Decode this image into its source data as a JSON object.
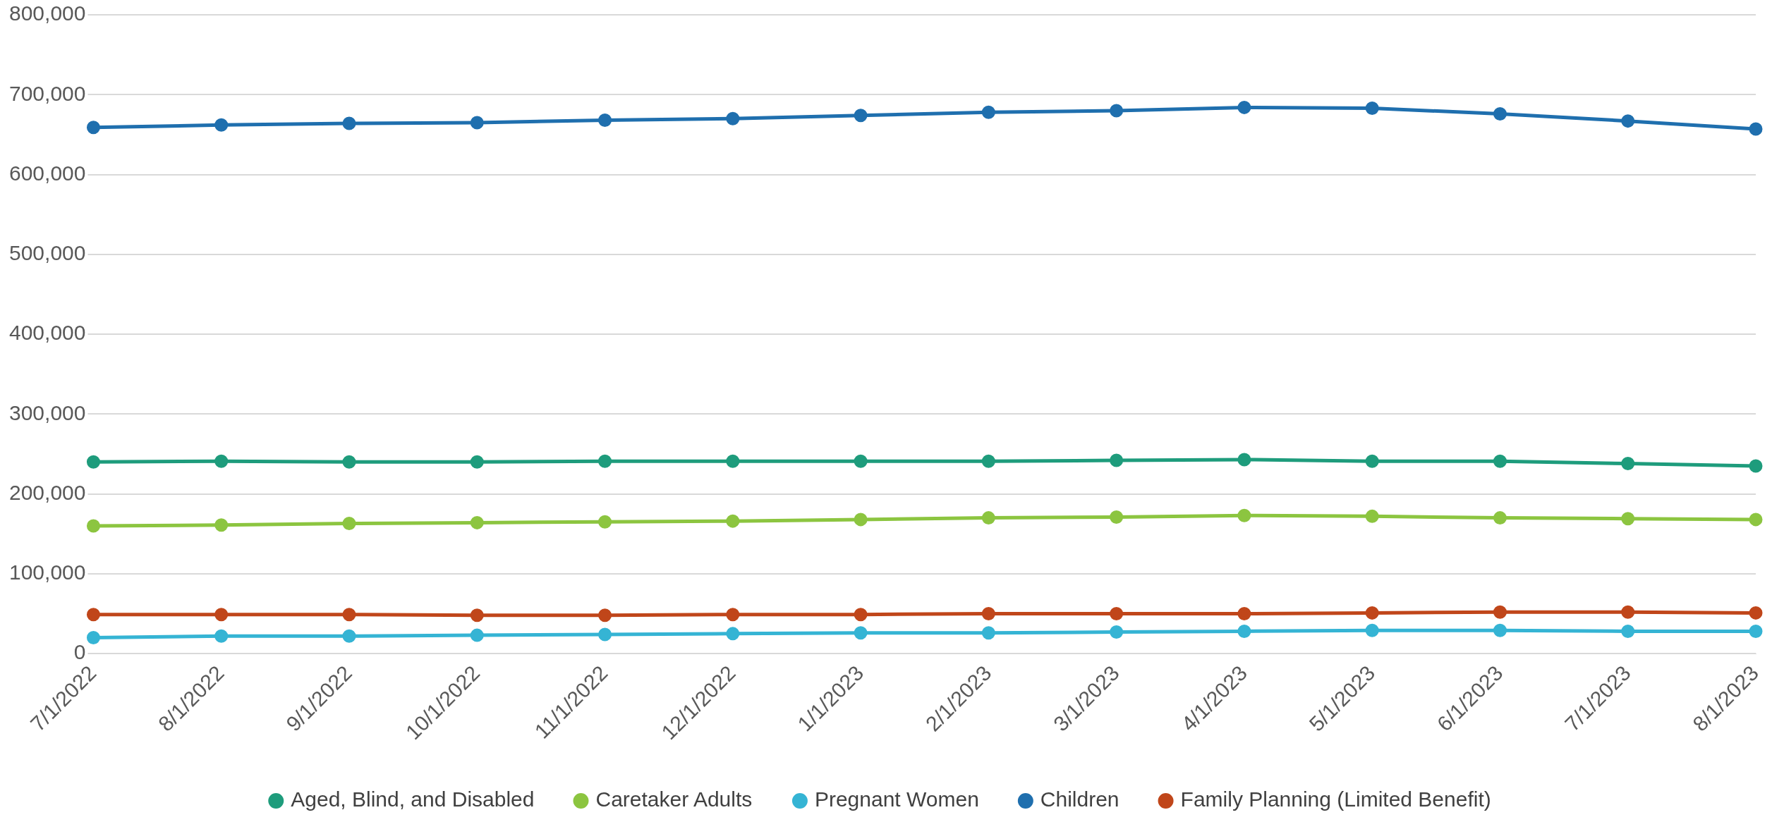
{
  "chart_data": {
    "type": "line",
    "categories": [
      "7/1/2022",
      "8/1/2022",
      "9/1/2022",
      "10/1/2022",
      "11/1/2022",
      "12/1/2022",
      "1/1/2023",
      "2/1/2023",
      "3/1/2023",
      "4/1/2023",
      "5/1/2023",
      "6/1/2023",
      "7/1/2023",
      "8/1/2023"
    ],
    "series": [
      {
        "name": "Aged, Blind, and Disabled",
        "color": "#1e9c7c",
        "values": [
          240000,
          241000,
          240000,
          240000,
          241000,
          241000,
          241000,
          241000,
          242000,
          243000,
          241000,
          241000,
          238000,
          235000
        ]
      },
      {
        "name": "Caretaker Adults",
        "color": "#8cc540",
        "values": [
          160000,
          161000,
          163000,
          164000,
          165000,
          166000,
          168000,
          170000,
          171000,
          173000,
          172000,
          170000,
          169000,
          168000
        ]
      },
      {
        "name": "Pregnant Women",
        "color": "#35b4d4",
        "values": [
          20000,
          22000,
          22000,
          23000,
          24000,
          25000,
          26000,
          26000,
          27000,
          28000,
          29000,
          29000,
          28000,
          28000
        ]
      },
      {
        "name": "Children",
        "color": "#1f6fae",
        "values": [
          659000,
          662000,
          664000,
          665000,
          668000,
          670000,
          674000,
          678000,
          680000,
          684000,
          683000,
          676000,
          667000,
          657000
        ]
      },
      {
        "name": "Family Planning (Limited Benefit)",
        "color": "#c0461a",
        "values": [
          49000,
          49000,
          49000,
          48000,
          48000,
          49000,
          49000,
          50000,
          50000,
          50000,
          51000,
          52000,
          52000,
          51000
        ]
      }
    ],
    "ylim": [
      0,
      800000
    ],
    "yticks": [
      0,
      {
        "value": 100000,
        "label": "100,000"
      },
      {
        "value": 200000,
        "label": "200,000"
      },
      {
        "value": 300000,
        "label": "300,000"
      },
      {
        "value": 400000,
        "label": "400,000"
      },
      {
        "value": 500000,
        "label": "500,000"
      },
      {
        "value": 600000,
        "label": "600,000"
      },
      {
        "value": 700000,
        "label": "700,000"
      },
      {
        "value": 800000,
        "label": "800,000"
      }
    ],
    "grid": "y",
    "legend": "bottom",
    "marker": "circle",
    "line_style": "solid"
  }
}
